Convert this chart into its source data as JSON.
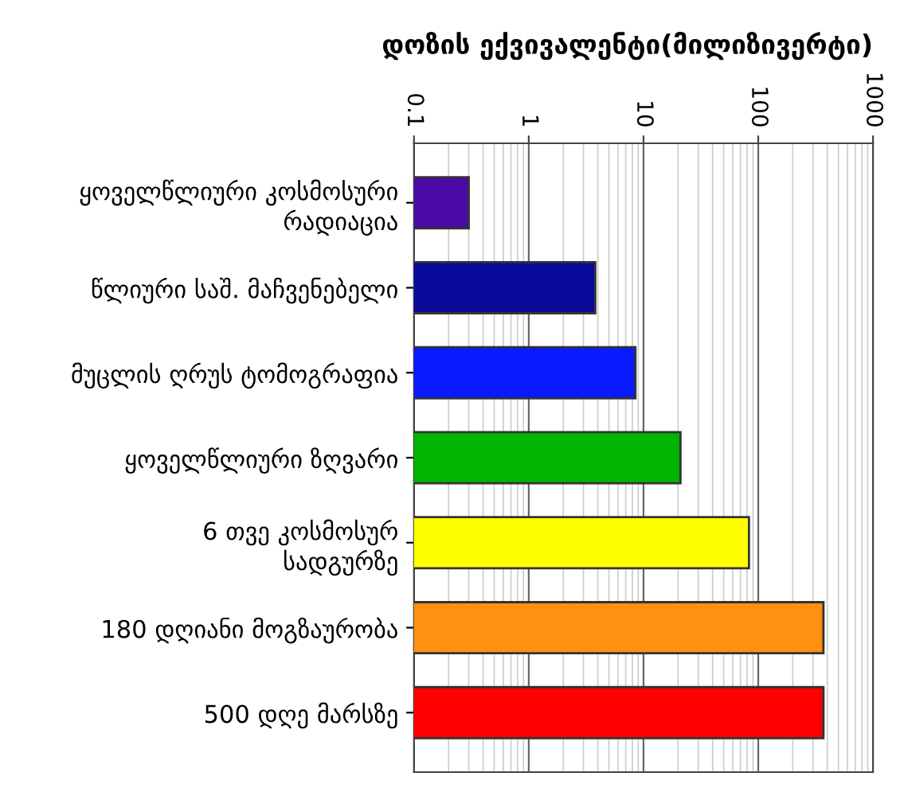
{
  "chart_data": {
    "type": "bar",
    "orientation": "horizontal",
    "xlabel": "დოზის ექვივალენტი(მილიზივერტი)",
    "categories": [
      "ყოველწლიური კოსმოსური\nრადიაცია",
      "წლიური საშ. მაჩვენებელი",
      "მუცლის ღრუს ტომოგრაფია",
      "ყოველწლიური ზღვარი",
      "6 თვე კოსმოსურ\nსადგურზე",
      "180 დღიანი მოგზაურობა",
      "500 დღე მარსზე"
    ],
    "values": [
      0.3,
      3.8,
      8.5,
      21,
      83,
      370,
      370
    ],
    "colors": [
      "#4b0aa8",
      "#0a0a9a",
      "#0a1aff",
      "#00b400",
      "#ffff00",
      "#ff9010",
      "#ff0000"
    ],
    "log": "x",
    "xlim": [
      0.1,
      1000
    ],
    "xticks": [
      0.1,
      1,
      10,
      100,
      1000
    ],
    "grid": "x"
  }
}
